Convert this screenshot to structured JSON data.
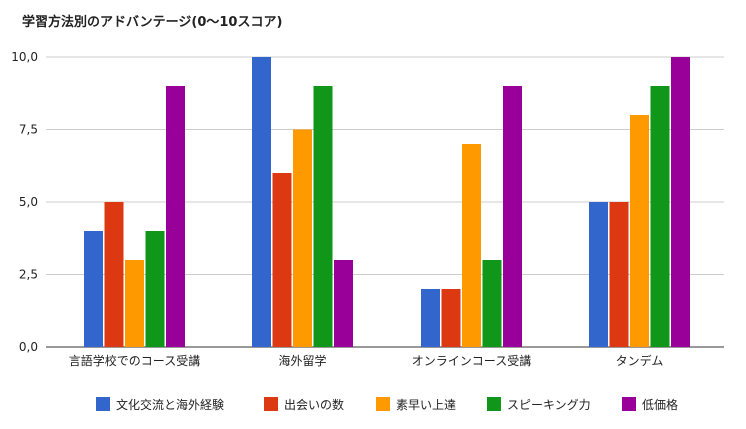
{
  "chart_data": {
    "type": "bar",
    "title": "学習方法別のアドバンテージ(0〜10スコア)",
    "categories": [
      "言語学校でのコース受講",
      "海外留学",
      "オンラインコース受講",
      "タンデム"
    ],
    "series": [
      {
        "name": "文化交流と海外経験",
        "color": "#3366cc",
        "values": [
          4,
          10,
          2,
          5
        ]
      },
      {
        "name": "出会いの数",
        "color": "#dc3912",
        "values": [
          5,
          6,
          2,
          5
        ]
      },
      {
        "name": "素早い上達",
        "color": "#ff9900",
        "values": [
          3,
          7.5,
          7,
          8
        ]
      },
      {
        "name": "スピーキング力",
        "color": "#109618",
        "values": [
          4,
          9,
          3,
          9
        ]
      },
      {
        "name": "低価格",
        "color": "#990099",
        "values": [
          9,
          3,
          9,
          10
        ]
      }
    ],
    "ylim": [
      0,
      10
    ],
    "yticks": [
      "0,0",
      "2,5",
      "5,0",
      "7,5",
      "10,0"
    ],
    "xlabel": "",
    "ylabel": "",
    "grid": true,
    "legend": "bottom"
  }
}
